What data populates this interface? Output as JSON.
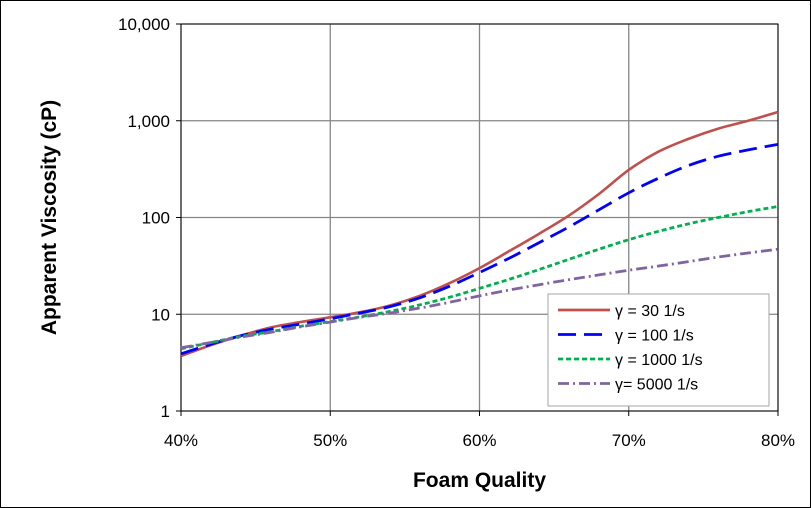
{
  "chart_data": {
    "type": "line",
    "title": "",
    "xlabel": "Foam Quality",
    "ylabel": "Apparent Viscosity (cP)",
    "x_scale": "linear",
    "y_scale": "log",
    "xlim": [
      40,
      80
    ],
    "ylim": [
      1,
      10000
    ],
    "grid": true,
    "legend_position": "bottom-right",
    "x_ticks": [
      40,
      50,
      60,
      70,
      80
    ],
    "x_tick_labels": [
      "40%",
      "50%",
      "60%",
      "70%",
      "80%"
    ],
    "y_ticks": [
      1,
      10,
      100,
      1000,
      10000
    ],
    "y_tick_labels": [
      "1",
      "10",
      "100",
      "1,000",
      "10,000"
    ],
    "series": [
      {
        "name": "γ = 30 1/s",
        "color": "#c0504d",
        "dash": "solid",
        "x": [
          40,
          42,
          44,
          46,
          48,
          50,
          52,
          54,
          56,
          58,
          60,
          62,
          64,
          66,
          68,
          70,
          72,
          74,
          76,
          78,
          80
        ],
        "y": [
          3.7,
          4.8,
          6.0,
          7.3,
          8.3,
          9.3,
          10.5,
          12.3,
          15.5,
          21,
          30,
          45,
          68,
          105,
          175,
          310,
          480,
          650,
          830,
          1000,
          1230
        ]
      },
      {
        "name": "γ = 100 1/s",
        "color": "#0000ff",
        "dash": "long-dash",
        "x": [
          40,
          42,
          44,
          46,
          48,
          50,
          52,
          54,
          56,
          58,
          60,
          62,
          64,
          66,
          68,
          70,
          72,
          74,
          76,
          78,
          80
        ],
        "y": [
          3.9,
          4.9,
          6.0,
          7.0,
          7.9,
          9.0,
          10.3,
          12.0,
          14.8,
          19.5,
          27,
          38,
          55,
          80,
          120,
          180,
          255,
          345,
          430,
          500,
          570
        ]
      },
      {
        "name": "γ = 1000 1/s",
        "color": "#00b050",
        "dash": "short-dash",
        "x": [
          40,
          42,
          44,
          46,
          48,
          50,
          52,
          54,
          56,
          58,
          60,
          62,
          64,
          66,
          68,
          70,
          72,
          74,
          76,
          78,
          80
        ],
        "y": [
          4.4,
          5.1,
          5.9,
          6.6,
          7.5,
          8.4,
          9.4,
          10.7,
          12.5,
          15.0,
          18.5,
          23,
          29,
          37,
          47,
          59,
          72,
          86,
          100,
          115,
          130
        ]
      },
      {
        "name": "γ= 5000 1/s",
        "color": "#8064a2",
        "dash": "dash-dot",
        "x": [
          40,
          42,
          44,
          46,
          48,
          50,
          52,
          54,
          56,
          58,
          60,
          62,
          64,
          66,
          68,
          70,
          72,
          74,
          76,
          78,
          80
        ],
        "y": [
          4.5,
          5.1,
          5.8,
          6.5,
          7.4,
          8.3,
          9.3,
          10.3,
          11.6,
          13.3,
          15.5,
          17.8,
          20.2,
          22.8,
          25.5,
          28.5,
          31.5,
          35,
          39,
          43,
          47
        ]
      }
    ]
  }
}
